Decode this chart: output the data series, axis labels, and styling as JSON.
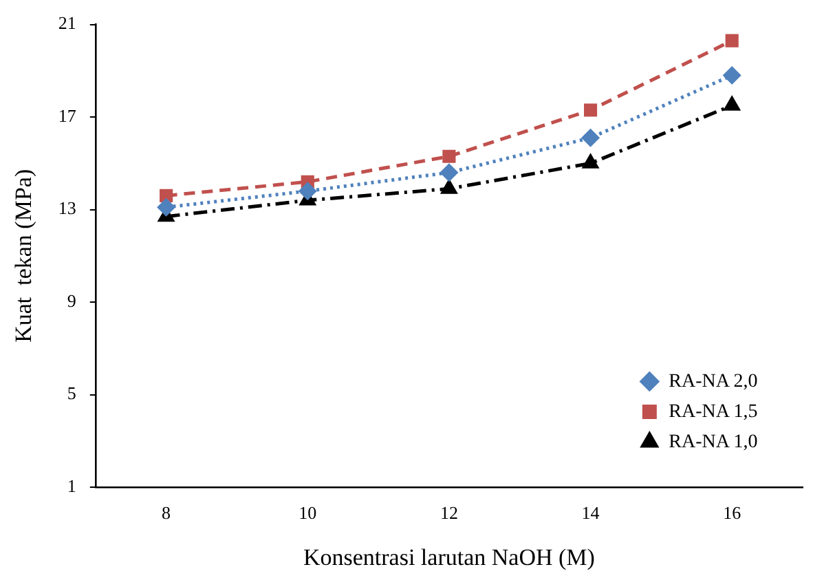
{
  "chart_data": {
    "type": "line",
    "xlabel": "Konsentrasi larutan NaOH (M)",
    "ylabel": "Kuat  tekan (MPa)",
    "categories": [
      "8",
      "10",
      "12",
      "14",
      "16"
    ],
    "series": [
      {
        "name": "RA-NA 2,0",
        "color": "#4f81bd",
        "marker": "diamond",
        "line_style": "dotted",
        "values": [
          13.1,
          13.8,
          14.6,
          16.1,
          18.8
        ]
      },
      {
        "name": "RA-NA 1,5",
        "color": "#c0504d",
        "marker": "square",
        "line_style": "dashed",
        "values": [
          13.6,
          14.2,
          15.3,
          17.3,
          20.3
        ]
      },
      {
        "name": "RA-NA 1,0",
        "color": "#000000",
        "marker": "triangle",
        "line_style": "dashdot",
        "values": [
          12.7,
          13.4,
          13.9,
          15.0,
          17.5
        ]
      }
    ],
    "ylim": [
      1,
      21
    ],
    "yticks": [
      1,
      5,
      9,
      13,
      17,
      21
    ],
    "grid": false,
    "legend": "bottom right"
  }
}
